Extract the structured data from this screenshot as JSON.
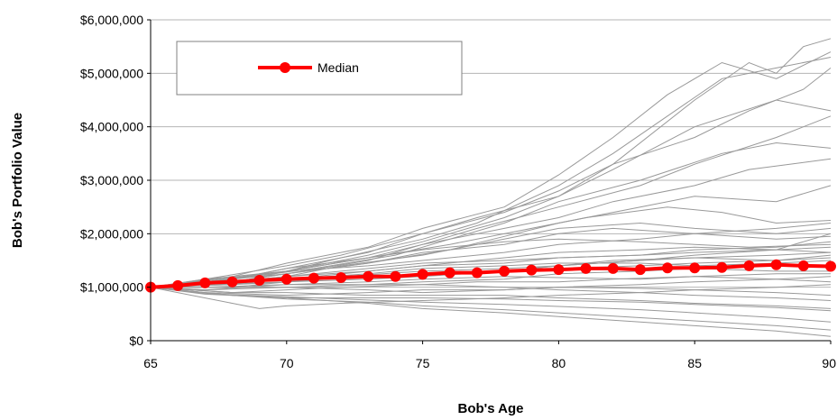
{
  "chart_data": {
    "type": "line",
    "title": "",
    "xlabel": "Bob's Age",
    "ylabel": "Bob's Portfolio Value",
    "xlim": [
      65,
      90
    ],
    "ylim": [
      0,
      6000000
    ],
    "x_ticks": [
      65,
      70,
      75,
      80,
      85,
      90
    ],
    "x_tick_labels": [
      "65",
      "70",
      "75",
      "80",
      "85",
      "90"
    ],
    "y_ticks": [
      0,
      1000000,
      2000000,
      3000000,
      4000000,
      5000000,
      6000000
    ],
    "y_tick_labels": [
      "$0",
      "$1,000,000",
      "$2,000,000",
      "$3,000,000",
      "$4,000,000",
      "$5,000,000",
      "$6,000,000"
    ],
    "grid": "horizontal",
    "legend": {
      "position": "top-left",
      "entries": [
        "Median"
      ]
    },
    "colors": {
      "median": "#ff0000",
      "simulations": "#999999"
    },
    "series": [
      {
        "name": "Median",
        "x": [
          65,
          66,
          67,
          68,
          69,
          70,
          71,
          72,
          73,
          74,
          75,
          76,
          77,
          78,
          79,
          80,
          81,
          82,
          83,
          84,
          85,
          86,
          87,
          88,
          89,
          90
        ],
        "values": [
          1000000,
          1030000,
          1080000,
          1100000,
          1130000,
          1150000,
          1170000,
          1180000,
          1200000,
          1200000,
          1240000,
          1270000,
          1270000,
          1300000,
          1320000,
          1330000,
          1350000,
          1350000,
          1330000,
          1360000,
          1360000,
          1370000,
          1400000,
          1420000,
          1400000,
          1390000
        ]
      }
    ],
    "simulation_paths": [
      {
        "x": [
          65,
          67,
          70,
          72,
          75,
          77,
          80,
          82,
          85,
          87,
          88,
          89,
          90
        ],
        "values": [
          1000000,
          1150000,
          1400000,
          1600000,
          2000000,
          2300000,
          2700000,
          3300000,
          4500000,
          5200000,
          5000000,
          5500000,
          5650000
        ]
      },
      {
        "x": [
          65,
          68,
          70,
          73,
          75,
          78,
          80,
          82,
          84,
          86,
          88,
          90
        ],
        "values": [
          1000000,
          1200000,
          1450000,
          1750000,
          2100000,
          2500000,
          3100000,
          3800000,
          4600000,
          5200000,
          4900000,
          5400000
        ]
      },
      {
        "x": [
          65,
          67,
          70,
          72,
          75,
          77,
          80,
          82,
          84,
          86,
          88,
          90
        ],
        "values": [
          1000000,
          1100000,
          1300000,
          1550000,
          1900000,
          2200000,
          2900000,
          3500000,
          4200000,
          4900000,
          5100000,
          5300000
        ]
      },
      {
        "x": [
          65,
          68,
          70,
          73,
          75,
          78,
          80,
          82,
          85,
          87,
          89,
          90
        ],
        "values": [
          1000000,
          1150000,
          1350000,
          1650000,
          2000000,
          2400000,
          2800000,
          3300000,
          3800000,
          4300000,
          4700000,
          5100000
        ]
      },
      {
        "x": [
          65,
          67,
          70,
          73,
          75,
          78,
          80,
          82,
          85,
          88,
          90
        ],
        "values": [
          1000000,
          1100000,
          1300000,
          1600000,
          1850000,
          2300000,
          2700000,
          3200000,
          4000000,
          4500000,
          4300000
        ]
      },
      {
        "x": [
          65,
          68,
          70,
          73,
          75,
          77,
          80,
          83,
          85,
          88,
          90
        ],
        "values": [
          1000000,
          1100000,
          1250000,
          1500000,
          1800000,
          2100000,
          2500000,
          2900000,
          3300000,
          3800000,
          4200000
        ]
      },
      {
        "x": [
          65,
          68,
          71,
          74,
          76,
          78,
          80,
          83,
          86,
          88,
          90
        ],
        "values": [
          1000000,
          1150000,
          1350000,
          1600000,
          1900000,
          2200000,
          2600000,
          3000000,
          3500000,
          3700000,
          3600000
        ]
      },
      {
        "x": [
          65,
          68,
          70,
          73,
          75,
          78,
          80,
          82,
          85,
          87,
          90
        ],
        "values": [
          1000000,
          1080000,
          1300000,
          1550000,
          1800000,
          2100000,
          2300000,
          2600000,
          2900000,
          3200000,
          3400000
        ]
      },
      {
        "x": [
          65,
          68,
          70,
          73,
          76,
          78,
          80,
          83,
          85,
          88,
          90
        ],
        "values": [
          1000000,
          1100000,
          1250000,
          1450000,
          1700000,
          1950000,
          2200000,
          2500000,
          2700000,
          2600000,
          2900000
        ]
      },
      {
        "x": [
          65,
          67,
          70,
          73,
          76,
          79,
          81,
          84,
          86,
          88,
          90
        ],
        "values": [
          1000000,
          1120000,
          1300000,
          1550000,
          1800000,
          2100000,
          2300000,
          2500000,
          2400000,
          2200000,
          2250000
        ]
      },
      {
        "x": [
          65,
          68,
          70,
          72,
          75,
          78,
          80,
          83,
          85,
          88,
          90
        ],
        "values": [
          1000000,
          1050000,
          1200000,
          1400000,
          1600000,
          1900000,
          2100000,
          2200000,
          2100000,
          2000000,
          2100000
        ]
      },
      {
        "x": [
          65,
          67,
          70,
          73,
          75,
          78,
          80,
          82,
          85,
          88,
          90
        ],
        "values": [
          1000000,
          1100000,
          1250000,
          1450000,
          1650000,
          1800000,
          2000000,
          2100000,
          2000000,
          1900000,
          1950000
        ]
      },
      {
        "x": [
          65,
          68,
          70,
          73,
          75,
          78,
          80,
          83,
          85,
          87,
          90
        ],
        "values": [
          1000000,
          1150000,
          1350000,
          1550000,
          1700000,
          1850000,
          1900000,
          1850000,
          1800000,
          1750000,
          1800000
        ]
      },
      {
        "x": [
          65,
          67,
          70,
          73,
          75,
          78,
          80,
          83,
          85,
          88,
          90
        ],
        "values": [
          1000000,
          1050000,
          1150000,
          1300000,
          1400000,
          1550000,
          1650000,
          1700000,
          1750000,
          1700000,
          1650000
        ]
      },
      {
        "x": [
          65,
          68,
          70,
          72,
          75,
          78,
          80,
          82,
          85,
          88,
          90
        ],
        "values": [
          1000000,
          1000000,
          1100000,
          1200000,
          1300000,
          1350000,
          1400000,
          1500000,
          1550000,
          1500000,
          1550000
        ]
      },
      {
        "x": [
          65,
          67,
          70,
          73,
          75,
          78,
          80,
          83,
          85,
          88,
          90
        ],
        "values": [
          1000000,
          950000,
          1000000,
          1050000,
          1100000,
          1150000,
          1250000,
          1300000,
          1350000,
          1300000,
          1300000
        ]
      },
      {
        "x": [
          65,
          68,
          70,
          72,
          75,
          77,
          80,
          82,
          85,
          88,
          90
        ],
        "values": [
          1000000,
          900000,
          950000,
          1000000,
          1050000,
          1100000,
          1100000,
          1150000,
          1200000,
          1150000,
          1100000
        ]
      },
      {
        "x": [
          65,
          67,
          70,
          73,
          75,
          78,
          80,
          83,
          85,
          88,
          90
        ],
        "values": [
          1000000,
          900000,
          850000,
          900000,
          950000,
          950000,
          1000000,
          980000,
          950000,
          900000,
          850000
        ]
      },
      {
        "x": [
          65,
          68,
          70,
          73,
          75,
          78,
          80,
          83,
          85,
          88,
          90
        ],
        "values": [
          1000000,
          850000,
          800000,
          800000,
          800000,
          780000,
          750000,
          720000,
          680000,
          620000,
          560000
        ]
      },
      {
        "x": [
          65,
          67,
          70,
          73,
          75,
          78,
          80,
          83,
          85,
          88,
          90
        ],
        "values": [
          1000000,
          880000,
          820000,
          760000,
          720000,
          680000,
          640000,
          580000,
          520000,
          430000,
          350000
        ]
      },
      {
        "x": [
          65,
          68,
          70,
          73,
          75,
          78,
          80,
          83,
          85,
          88,
          90
        ],
        "values": [
          1000000,
          850000,
          780000,
          720000,
          650000,
          580000,
          520000,
          430000,
          370000,
          280000,
          200000
        ]
      },
      {
        "x": [
          65,
          67,
          70,
          73,
          75,
          78,
          80,
          83,
          85,
          88,
          90
        ],
        "values": [
          1000000,
          870000,
          800000,
          700000,
          600000,
          520000,
          450000,
          350000,
          280000,
          180000,
          80000
        ]
      },
      {
        "x": [
          65,
          68,
          69,
          70,
          72,
          75,
          78,
          80,
          83,
          85,
          88,
          90
        ],
        "values": [
          1000000,
          700000,
          600000,
          650000,
          700000,
          750000,
          800000,
          850000,
          900000,
          950000,
          1000000,
          1050000
        ]
      },
      {
        "x": [
          65,
          67,
          70,
          73,
          75,
          78,
          80,
          83,
          85,
          88,
          90
        ],
        "values": [
          1000000,
          1050000,
          1200000,
          1300000,
          1400000,
          1450000,
          1550000,
          1600000,
          1700000,
          1750000,
          1850000
        ]
      },
      {
        "x": [
          65,
          68,
          70,
          73,
          75,
          78,
          80,
          83,
          85,
          88,
          90
        ],
        "values": [
          1000000,
          1100000,
          1150000,
          1200000,
          1250000,
          1300000,
          1350000,
          1400000,
          1450000,
          1500000,
          1600000
        ]
      },
      {
        "x": [
          65,
          67,
          70,
          73,
          75,
          78,
          80,
          83,
          85,
          88,
          90
        ],
        "values": [
          1000000,
          950000,
          1050000,
          1100000,
          1150000,
          1200000,
          1180000,
          1150000,
          1200000,
          1250000,
          1250000
        ]
      },
      {
        "x": [
          65,
          68,
          70,
          73,
          75,
          78,
          80,
          83,
          85,
          88,
          90
        ],
        "values": [
          1000000,
          1050000,
          1100000,
          1150000,
          1200000,
          1300000,
          1400000,
          1500000,
          1600000,
          1700000,
          2000000
        ]
      },
      {
        "x": [
          65,
          67,
          70,
          73,
          75,
          78,
          80,
          83,
          85,
          88,
          90
        ],
        "values": [
          1000000,
          1000000,
          1050000,
          1050000,
          1050000,
          1000000,
          950000,
          900000,
          850000,
          800000,
          750000
        ]
      },
      {
        "x": [
          65,
          68,
          70,
          73,
          75,
          78,
          80,
          83,
          85,
          88,
          90
        ],
        "values": [
          1000000,
          1100000,
          1200000,
          1350000,
          1450000,
          1500000,
          1550000,
          1600000,
          1650000,
          1700000,
          1750000
        ]
      },
      {
        "x": [
          65,
          67,
          70,
          73,
          75,
          78,
          80,
          83,
          85,
          88,
          90
        ],
        "values": [
          1000000,
          1150000,
          1300000,
          1400000,
          1500000,
          1650000,
          1800000,
          1900000,
          2000000,
          2100000,
          2200000
        ]
      },
      {
        "x": [
          65,
          68,
          70,
          73,
          75,
          78,
          80,
          83,
          85,
          88,
          90
        ],
        "values": [
          1000000,
          1000000,
          1000000,
          950000,
          900000,
          950000,
          1000000,
          1050000,
          1100000,
          1150000,
          1200000
        ]
      },
      {
        "x": [
          65,
          67,
          70,
          73,
          75,
          78,
          80,
          83,
          85,
          88,
          90
        ],
        "values": [
          1000000,
          1050000,
          1150000,
          1250000,
          1350000,
          1400000,
          1450000,
          1450000,
          1400000,
          1450000,
          1500000
        ]
      },
      {
        "x": [
          65,
          68,
          70,
          73,
          75,
          78,
          80,
          83,
          85,
          88,
          90
        ],
        "values": [
          1000000,
          900000,
          900000,
          850000,
          850000,
          850000,
          800000,
          750000,
          700000,
          650000,
          600000
        ]
      },
      {
        "x": [
          65,
          67,
          70,
          73,
          75,
          78,
          80,
          83,
          85,
          88,
          90
        ],
        "values": [
          1000000,
          1050000,
          1100000,
          1200000,
          1250000,
          1300000,
          1400000,
          1500000,
          1550000,
          1600000,
          1650000
        ]
      }
    ]
  }
}
